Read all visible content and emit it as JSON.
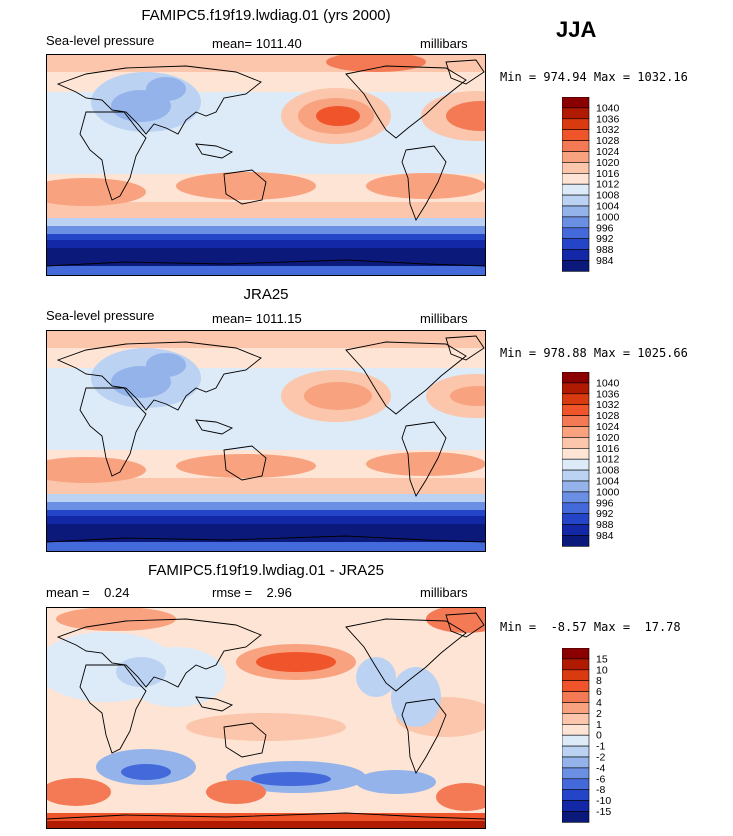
{
  "season": "JJA",
  "panels": [
    {
      "title": "FAMIPC5.f19f19.lwdiag.01 (yrs 2000)",
      "left_label": "Sea-level pressure",
      "center_label": "mean= 1011.40",
      "units": "millibars",
      "minmax": "Min = 974.94 Max = 1032.16",
      "colorbar": {
        "levels": [
          "1040",
          "1036",
          "1032",
          "1028",
          "1024",
          "1020",
          "1016",
          "1012",
          "1008",
          "1004",
          "1000",
          "996",
          "992",
          "988",
          "984"
        ],
        "colors": [
          "#8b0000",
          "#b01a00",
          "#d93a10",
          "#f0542a",
          "#f47a55",
          "#f8a27f",
          "#fbc6ab",
          "#fde4d4",
          "#ddeaf8",
          "#bcd2f2",
          "#93b3ea",
          "#6b8fe2",
          "#4469da",
          "#2445c8",
          "#1228a6",
          "#0b1a7a"
        ]
      },
      "kind": "slp"
    },
    {
      "title": "JRA25",
      "left_label": "Sea-level pressure",
      "center_label": "mean= 1011.15",
      "units": "millibars",
      "minmax": "Min = 978.88 Max = 1025.66",
      "colorbar": {
        "levels": [
          "1040",
          "1036",
          "1032",
          "1028",
          "1024",
          "1020",
          "1016",
          "1012",
          "1008",
          "1004",
          "1000",
          "996",
          "992",
          "988",
          "984"
        ],
        "colors": [
          "#8b0000",
          "#b01a00",
          "#d93a10",
          "#f0542a",
          "#f47a55",
          "#f8a27f",
          "#fbc6ab",
          "#fde4d4",
          "#ddeaf8",
          "#bcd2f2",
          "#93b3ea",
          "#6b8fe2",
          "#4469da",
          "#2445c8",
          "#1228a6",
          "#0b1a7a"
        ]
      },
      "kind": "slp"
    },
    {
      "title": "FAMIPC5.f19f19.lwdiag.01 - JRA25",
      "left_label": "mean =    0.24",
      "center_label": "rmse =    2.96",
      "units": "millibars",
      "minmax": "Min =  -8.57 Max =  17.78",
      "colorbar": {
        "levels": [
          "15",
          "10",
          "8",
          "6",
          "4",
          "2",
          "1",
          "0",
          "-1",
          "-2",
          "-4",
          "-6",
          "-8",
          "-10",
          "-15"
        ],
        "colors": [
          "#8b0000",
          "#b01a00",
          "#d93a10",
          "#f0542a",
          "#f47a55",
          "#f8a27f",
          "#fbc6ab",
          "#fde4d4",
          "#ddeaf8",
          "#bcd2f2",
          "#93b3ea",
          "#6b8fe2",
          "#4469da",
          "#2445c8",
          "#1228a6",
          "#0b1a7a"
        ]
      },
      "kind": "diff"
    }
  ],
  "chart_data": {
    "type": "heatmap",
    "season": "JJA",
    "variable": "Sea-level pressure",
    "units": "millibars",
    "maps": [
      {
        "title": "FAMIPC5.f19f19.lwdiag.01 (yrs 2000)",
        "mean": 1011.4,
        "min": 974.94,
        "max": 1032.16
      },
      {
        "title": "JRA25",
        "mean": 1011.15,
        "min": 978.88,
        "max": 1025.66
      },
      {
        "title": "FAMIPC5.f19f19.lwdiag.01 - JRA25",
        "mean": 0.24,
        "rmse": 2.96,
        "min": -8.57,
        "max": 17.78
      }
    ]
  }
}
